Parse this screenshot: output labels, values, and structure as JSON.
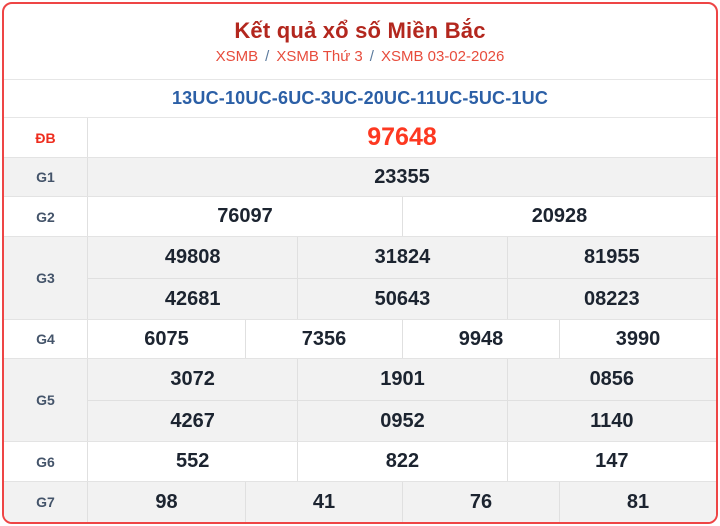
{
  "header": {
    "title": "Kết quả xổ số Miền Bắc",
    "breadcrumb": [
      {
        "label": "XSMB"
      },
      {
        "label": "XSMB Thứ 3"
      },
      {
        "label": "XSMB 03-02-2026"
      }
    ],
    "separator": "/",
    "code_line": "13UC-10UC-6UC-3UC-20UC-11UC-5UC-1UC"
  },
  "results": {
    "rows": [
      {
        "label": "ĐB",
        "cells": [
          "97648"
        ]
      },
      {
        "label": "G1",
        "cells": [
          "23355"
        ]
      },
      {
        "label": "G2",
        "cells": [
          "76097",
          "20928"
        ]
      },
      {
        "label": "G3",
        "cells": [
          "49808",
          "31824",
          "81955",
          "42681",
          "50643",
          "08223"
        ]
      },
      {
        "label": "G4",
        "cells": [
          "6075",
          "7356",
          "9948",
          "3990"
        ]
      },
      {
        "label": "G5",
        "cells": [
          "3072",
          "1901",
          "0856",
          "4267",
          "0952",
          "1140"
        ]
      },
      {
        "label": "G6",
        "cells": [
          "552",
          "822",
          "147"
        ]
      },
      {
        "label": "G7",
        "cells": [
          "98",
          "41",
          "76",
          "81"
        ]
      }
    ]
  },
  "colors": {
    "card_border": "#ee4545",
    "title": "#b3271e",
    "breadcrumb_link": "#e74c3c",
    "breadcrumb_separator": "#5b7a9d",
    "code_text": "#2b5fa6",
    "jackpot_value": "#fd3821",
    "jackpot_label": "#ee2c1d",
    "row_label": "#44546a",
    "value_text": "#1c2430",
    "alt_row_bg": "#f2f2f2"
  }
}
